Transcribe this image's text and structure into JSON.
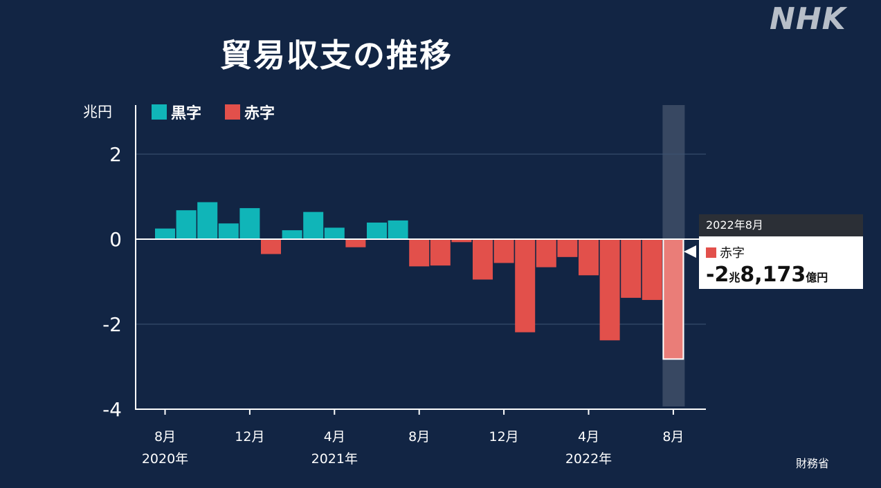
{
  "brand": {
    "logo_text": "NHK"
  },
  "header": {
    "title": "貿易収支の推移"
  },
  "legend": {
    "unit": "兆円",
    "items": [
      {
        "label": "黒字",
        "color": "#10b5b8"
      },
      {
        "label": "赤字",
        "color": "#e2504b"
      }
    ]
  },
  "tooltip": {
    "date": "2022年8月",
    "legend_label": "赤字",
    "value_parts": [
      "-2",
      "兆",
      "8,173",
      "億円"
    ]
  },
  "source": "財務省",
  "chart_data": {
    "type": "bar",
    "title": "貿易収支の推移",
    "ylabel": "兆円",
    "ylim": [
      -4,
      3
    ],
    "y_ticks": [
      2,
      0,
      -2,
      -4
    ],
    "y_tick_labels": [
      "2",
      "0",
      "-2",
      "-4"
    ],
    "grid": true,
    "legend_position": "top-left",
    "categories": [
      "2020-08",
      "2020-09",
      "2020-10",
      "2020-11",
      "2020-12",
      "2021-01",
      "2021-02",
      "2021-03",
      "2021-04",
      "2021-05",
      "2021-06",
      "2021-07",
      "2021-08",
      "2021-09",
      "2021-10",
      "2021-11",
      "2021-12",
      "2022-01",
      "2022-02",
      "2022-03",
      "2022-04",
      "2022-05",
      "2022-06",
      "2022-07",
      "2022-08"
    ],
    "values": [
      0.25,
      0.68,
      0.87,
      0.37,
      0.73,
      -0.35,
      0.21,
      0.64,
      0.27,
      -0.19,
      0.39,
      0.44,
      -0.64,
      -0.62,
      -0.07,
      -0.95,
      -0.56,
      -2.19,
      -0.66,
      -0.42,
      -0.85,
      -2.38,
      -1.38,
      -1.43,
      -2.82
    ],
    "positive_color": "#10b5b8",
    "negative_color": "#e2504b",
    "highlight_color": "#ea7d78",
    "x_tick_labels": [
      {
        "index": 0,
        "month": "8月",
        "year": "2020年"
      },
      {
        "index": 4,
        "month": "12月",
        "year": ""
      },
      {
        "index": 8,
        "month": "4月",
        "year": "2021年"
      },
      {
        "index": 12,
        "month": "8月",
        "year": ""
      },
      {
        "index": 16,
        "month": "12月",
        "year": ""
      },
      {
        "index": 20,
        "month": "4月",
        "year": "2022年"
      },
      {
        "index": 24,
        "month": "8月",
        "year": ""
      }
    ],
    "highlighted_index": 24
  }
}
